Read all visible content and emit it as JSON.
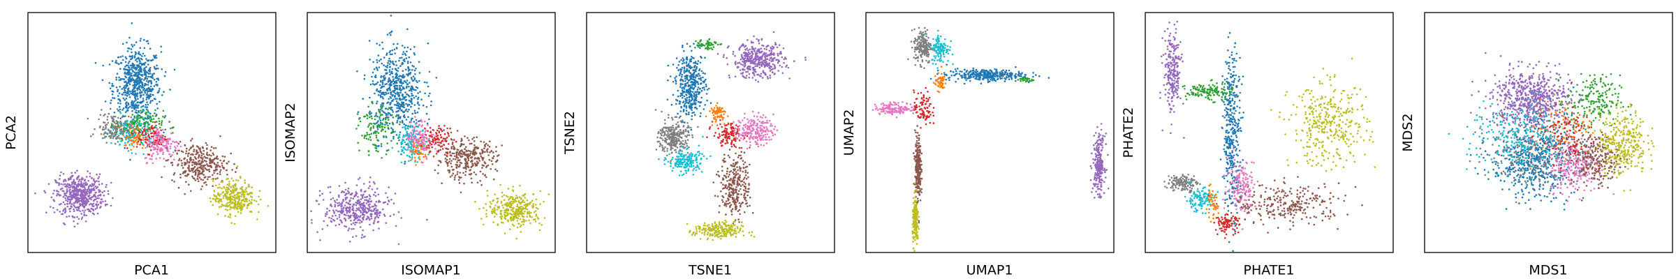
{
  "palette": {
    "blue": "#1f77b4",
    "orange": "#ff7f0e",
    "green": "#2ca02c",
    "red": "#d62728",
    "purple": "#9467bd",
    "brown": "#8c564b",
    "pink": "#e377c2",
    "gray": "#7f7f7f",
    "olive": "#bcbd22",
    "cyan": "#17becf"
  },
  "chart_data": [
    {
      "type": "scatter",
      "xlabel": "PCA1",
      "ylabel": "PCA2",
      "xlim": [
        0,
        10
      ],
      "ylim": [
        0,
        10
      ],
      "grid": false,
      "ticks": false,
      "clusters": [
        {
          "color": "blue",
          "points": 1400,
          "center": [
            4.4,
            7.0
          ],
          "spread": [
            0.8,
            1.3
          ]
        },
        {
          "color": "purple",
          "points": 1200,
          "center": [
            2.1,
            2.4
          ],
          "spread": [
            0.8,
            0.7
          ]
        },
        {
          "color": "cyan",
          "points": 350,
          "center": [
            4.2,
            5.0
          ],
          "spread": [
            0.7,
            0.6
          ]
        },
        {
          "color": "gray",
          "points": 300,
          "center": [
            3.5,
            5.2
          ],
          "spread": [
            0.6,
            0.5
          ]
        },
        {
          "color": "green",
          "points": 250,
          "center": [
            4.5,
            5.3
          ],
          "spread": [
            0.8,
            0.5
          ]
        },
        {
          "color": "orange",
          "points": 120,
          "center": [
            4.3,
            4.8
          ],
          "spread": [
            0.4,
            0.4
          ]
        },
        {
          "color": "red",
          "points": 200,
          "center": [
            5.0,
            4.8
          ],
          "spread": [
            0.5,
            0.5
          ]
        },
        {
          "color": "pink",
          "points": 300,
          "center": [
            5.4,
            4.5
          ],
          "spread": [
            0.6,
            0.6
          ]
        },
        {
          "color": "brown",
          "points": 700,
          "center": [
            6.9,
            3.7
          ],
          "spread": [
            0.9,
            0.7
          ]
        },
        {
          "color": "olive",
          "points": 700,
          "center": [
            8.3,
            2.3
          ],
          "spread": [
            0.7,
            0.6
          ]
        }
      ]
    },
    {
      "type": "scatter",
      "xlabel": "ISOMAP1",
      "ylabel": "ISOMAP2",
      "xlim": [
        0,
        10
      ],
      "ylim": [
        0,
        10
      ],
      "grid": false,
      "ticks": false,
      "clusters": [
        {
          "color": "blue",
          "points": 1300,
          "center": [
            3.6,
            6.7
          ],
          "spread": [
            0.9,
            1.6
          ]
        },
        {
          "color": "purple",
          "points": 900,
          "center": [
            2.0,
            1.8
          ],
          "spread": [
            1.1,
            0.8
          ]
        },
        {
          "color": "green",
          "points": 250,
          "center": [
            2.8,
            5.1
          ],
          "spread": [
            0.6,
            0.8
          ]
        },
        {
          "color": "cyan",
          "points": 300,
          "center": [
            4.2,
            4.6
          ],
          "spread": [
            0.5,
            0.6
          ]
        },
        {
          "color": "orange",
          "points": 120,
          "center": [
            4.5,
            4.3
          ],
          "spread": [
            0.3,
            0.4
          ]
        },
        {
          "color": "pink",
          "points": 250,
          "center": [
            4.6,
            4.8
          ],
          "spread": [
            0.5,
            0.6
          ]
        },
        {
          "color": "red",
          "points": 200,
          "center": [
            5.3,
            4.7
          ],
          "spread": [
            0.5,
            0.5
          ]
        },
        {
          "color": "brown",
          "points": 700,
          "center": [
            6.4,
            3.9
          ],
          "spread": [
            1.0,
            0.7
          ]
        },
        {
          "color": "olive",
          "points": 700,
          "center": [
            8.4,
            1.8
          ],
          "spread": [
            0.9,
            0.6
          ]
        }
      ]
    },
    {
      "type": "scatter",
      "xlabel": "TSNE1",
      "ylabel": "TSNE2",
      "xlim": [
        0,
        10
      ],
      "ylim": [
        0,
        10
      ],
      "grid": false,
      "ticks": false,
      "clusters": [
        {
          "color": "purple",
          "points": 900,
          "center": [
            6.9,
            8.0
          ],
          "spread": [
            0.9,
            0.6
          ]
        },
        {
          "color": "blue",
          "points": 900,
          "center": [
            4.2,
            7.0
          ],
          "spread": [
            0.5,
            1.1
          ]
        },
        {
          "color": "green",
          "points": 120,
          "center": [
            4.8,
            8.7
          ],
          "spread": [
            0.4,
            0.2
          ]
        },
        {
          "color": "gray",
          "points": 600,
          "center": [
            3.5,
            4.8
          ],
          "spread": [
            0.5,
            0.6
          ]
        },
        {
          "color": "cyan",
          "points": 400,
          "center": [
            4.0,
            3.8
          ],
          "spread": [
            0.6,
            0.4
          ]
        },
        {
          "color": "orange",
          "points": 150,
          "center": [
            5.3,
            5.8
          ],
          "spread": [
            0.3,
            0.3
          ]
        },
        {
          "color": "red",
          "points": 250,
          "center": [
            5.7,
            4.9
          ],
          "spread": [
            0.5,
            0.4
          ]
        },
        {
          "color": "pink",
          "points": 450,
          "center": [
            6.8,
            5.1
          ],
          "spread": [
            0.6,
            0.5
          ]
        },
        {
          "color": "brown",
          "points": 650,
          "center": [
            6.0,
            2.8
          ],
          "spread": [
            0.5,
            1.1
          ]
        },
        {
          "color": "olive",
          "points": 500,
          "center": [
            5.3,
            0.9
          ],
          "spread": [
            0.8,
            0.3
          ]
        }
      ]
    },
    {
      "type": "scatter",
      "xlabel": "UMAP1",
      "ylabel": "UMAP2",
      "xlim": [
        0,
        10
      ],
      "ylim": [
        0,
        10
      ],
      "grid": false,
      "ticks": false,
      "clusters": [
        {
          "color": "gray",
          "points": 400,
          "center": [
            2.3,
            8.6
          ],
          "spread": [
            0.3,
            0.6
          ]
        },
        {
          "color": "cyan",
          "points": 250,
          "center": [
            3.0,
            8.5
          ],
          "spread": [
            0.3,
            0.5
          ]
        },
        {
          "color": "blue",
          "points": 700,
          "center": [
            4.8,
            7.4
          ],
          "spread": [
            1.3,
            0.2
          ]
        },
        {
          "color": "green",
          "points": 60,
          "center": [
            6.4,
            7.2
          ],
          "spread": [
            0.3,
            0.1
          ]
        },
        {
          "color": "orange",
          "points": 120,
          "center": [
            3.0,
            7.1
          ],
          "spread": [
            0.2,
            0.3
          ]
        },
        {
          "color": "red",
          "points": 200,
          "center": [
            2.3,
            6.0
          ],
          "spread": [
            0.3,
            0.6
          ]
        },
        {
          "color": "pink",
          "points": 300,
          "center": [
            1.2,
            6.0
          ],
          "spread": [
            0.7,
            0.2
          ]
        },
        {
          "color": "brown",
          "points": 550,
          "center": [
            2.1,
            3.5
          ],
          "spread": [
            0.1,
            1.2
          ]
        },
        {
          "color": "olive",
          "points": 400,
          "center": [
            2.0,
            1.3
          ],
          "spread": [
            0.1,
            0.8
          ]
        },
        {
          "color": "purple",
          "points": 500,
          "center": [
            9.4,
            3.7
          ],
          "spread": [
            0.2,
            1.0
          ]
        }
      ]
    },
    {
      "type": "scatter",
      "xlabel": "PHATE1",
      "ylabel": "PHATE2",
      "xlim": [
        0,
        10
      ],
      "ylim": [
        0,
        10
      ],
      "grid": false,
      "ticks": false,
      "clusters": [
        {
          "color": "purple",
          "points": 500,
          "center": [
            1.1,
            7.5
          ],
          "spread": [
            0.3,
            1.5
          ]
        },
        {
          "color": "green",
          "points": 300,
          "center": [
            2.6,
            6.7
          ],
          "spread": [
            0.8,
            0.3
          ]
        },
        {
          "color": "blue",
          "points": 800,
          "center": [
            3.5,
            5.0
          ],
          "spread": [
            0.3,
            2.8
          ]
        },
        {
          "color": "gray",
          "points": 300,
          "center": [
            1.5,
            2.9
          ],
          "spread": [
            0.5,
            0.3
          ]
        },
        {
          "color": "cyan",
          "points": 250,
          "center": [
            2.2,
            2.2
          ],
          "spread": [
            0.5,
            0.4
          ]
        },
        {
          "color": "orange",
          "points": 100,
          "center": [
            2.7,
            2.0
          ],
          "spread": [
            0.2,
            0.5
          ]
        },
        {
          "color": "red",
          "points": 200,
          "center": [
            3.3,
            1.2
          ],
          "spread": [
            0.4,
            0.3
          ]
        },
        {
          "color": "pink",
          "points": 350,
          "center": [
            3.9,
            2.8
          ],
          "spread": [
            0.5,
            0.9
          ]
        },
        {
          "color": "brown",
          "points": 600,
          "center": [
            5.8,
            2.0
          ],
          "spread": [
            1.8,
            0.7
          ]
        },
        {
          "color": "olive",
          "points": 800,
          "center": [
            7.4,
            5.3
          ],
          "spread": [
            1.3,
            1.4
          ]
        }
      ]
    },
    {
      "type": "scatter",
      "xlabel": "MDS1",
      "ylabel": "MDS2",
      "xlim": [
        0,
        10
      ],
      "ylim": [
        0,
        10
      ],
      "grid": false,
      "ticks": false,
      "clusters": [
        {
          "color": "purple",
          "points": 1400,
          "center": [
            4.3,
            6.4
          ],
          "spread": [
            1.3,
            1.0
          ]
        },
        {
          "color": "blue",
          "points": 1200,
          "center": [
            4.4,
            3.8
          ],
          "spread": [
            1.4,
            1.2
          ]
        },
        {
          "color": "gray",
          "points": 600,
          "center": [
            4.6,
            4.4
          ],
          "spread": [
            1.7,
            1.5
          ]
        },
        {
          "color": "cyan",
          "points": 500,
          "center": [
            3.8,
            4.8
          ],
          "spread": [
            1.6,
            1.3
          ]
        },
        {
          "color": "green",
          "points": 400,
          "center": [
            6.8,
            6.3
          ],
          "spread": [
            0.9,
            0.9
          ]
        },
        {
          "color": "pink",
          "points": 500,
          "center": [
            6.1,
            3.6
          ],
          "spread": [
            0.9,
            0.9
          ]
        },
        {
          "color": "brown",
          "points": 500,
          "center": [
            6.9,
            3.9
          ],
          "spread": [
            0.8,
            0.9
          ]
        },
        {
          "color": "orange",
          "points": 200,
          "center": [
            5.6,
            5.2
          ],
          "spread": [
            1.0,
            1.0
          ]
        },
        {
          "color": "red",
          "points": 200,
          "center": [
            5.7,
            4.9
          ],
          "spread": [
            1.0,
            1.0
          ]
        },
        {
          "color": "olive",
          "points": 700,
          "center": [
            8.0,
            4.6
          ],
          "spread": [
            0.8,
            1.1
          ]
        }
      ]
    }
  ]
}
